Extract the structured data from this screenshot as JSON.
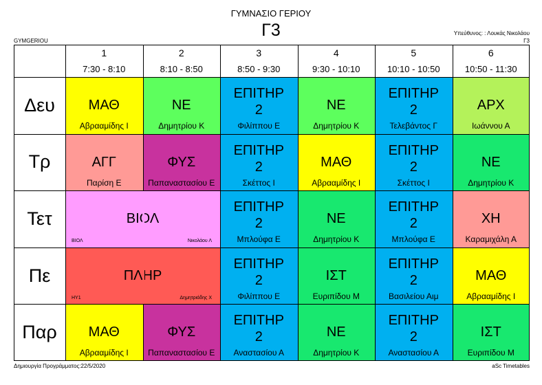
{
  "header": {
    "school_name": "ΓΥΜΝΑΣΙΟ ΓΕΡΙΟΥ",
    "class_name": "Γ3",
    "school_code": "GYMGERIOU",
    "responsible": "Υπεύθυνος: : Λουκάς Νικολάου",
    "responsible_class": "Γ3"
  },
  "periods": [
    {
      "number": "1",
      "time": "7:30 - 8:10"
    },
    {
      "number": "2",
      "time": "8:10 - 8:50"
    },
    {
      "number": "3",
      "time": "8:50 - 9:30"
    },
    {
      "number": "4",
      "time": "9:30 - 10:10"
    },
    {
      "number": "5",
      "time": "10:10 - 10:50"
    },
    {
      "number": "6",
      "time": "10:50 - 11:30"
    }
  ],
  "days": [
    "Δευ",
    "Τρ",
    "Τετ",
    "Πε",
    "Παρ"
  ],
  "lessons": [
    {
      "day": 0,
      "col": 0,
      "span": 1,
      "subject": "ΜΑΘ",
      "teacher": "Αβρααμίδης Ι",
      "color": "#ffff00"
    },
    {
      "day": 0,
      "col": 1,
      "span": 1,
      "subject": "ΝΕ",
      "teacher": "Δημητρίου Κ",
      "color": "#5dff5d"
    },
    {
      "day": 0,
      "col": 2,
      "span": 1,
      "subject": "ΕΠΙΤΗΡ 2",
      "teacher": "Φιλίππου Ε",
      "color": "#00b0f0"
    },
    {
      "day": 0,
      "col": 3,
      "span": 1,
      "subject": "ΝΕ",
      "teacher": "Δημητρίου Κ",
      "color": "#5dff5d"
    },
    {
      "day": 0,
      "col": 4,
      "span": 1,
      "subject": "ΕΠΙΤΗΡ 2",
      "teacher": "Τελεβάντος Γ",
      "color": "#00b0f0"
    },
    {
      "day": 0,
      "col": 5,
      "span": 1,
      "subject": "ΑΡΧ",
      "teacher": "Ιωάννου Α",
      "color": "#b4f25a"
    },
    {
      "day": 1,
      "col": 0,
      "span": 1,
      "subject": "ΑΓΓ",
      "teacher": "Παρίση Ε",
      "color": "#ff9a96"
    },
    {
      "day": 1,
      "col": 1,
      "span": 1,
      "subject": "ΦΥΣ",
      "teacher": "Παπαναστασίου Ε",
      "color": "#c8329e"
    },
    {
      "day": 1,
      "col": 2,
      "span": 1,
      "subject": "ΕΠΙΤΗΡ 2",
      "teacher": "Σκέττος Ι",
      "color": "#00b0f0"
    },
    {
      "day": 1,
      "col": 3,
      "span": 1,
      "subject": "ΜΑΘ",
      "teacher": "Αβρααμίδης Ι",
      "color": "#ffff00"
    },
    {
      "day": 1,
      "col": 4,
      "span": 1,
      "subject": "ΕΠΙΤΗΡ 2",
      "teacher": "Σκέττος Ι",
      "color": "#00b0f0"
    },
    {
      "day": 1,
      "col": 5,
      "span": 1,
      "subject": "ΝΕ",
      "teacher": "Δημητρίου Κ",
      "color": "#18e86f"
    },
    {
      "day": 2,
      "col": 0,
      "span": 2,
      "subject": "ΒΙΟΛ",
      "teacher": "",
      "small_left": "ΒΙΟΛ",
      "small_right": "Νικολάου Λ",
      "color": "#ff9cff"
    },
    {
      "day": 2,
      "col": 2,
      "span": 1,
      "subject": "ΕΠΙΤΗΡ 2",
      "teacher": "Μπλούφα Ε",
      "color": "#00b0f0"
    },
    {
      "day": 2,
      "col": 3,
      "span": 1,
      "subject": "ΝΕ",
      "teacher": "Δημητρίου Κ",
      "color": "#18e86f"
    },
    {
      "day": 2,
      "col": 4,
      "span": 1,
      "subject": "ΕΠΙΤΗΡ 2",
      "teacher": "Μπλούφα Ε",
      "color": "#00b0f0"
    },
    {
      "day": 2,
      "col": 5,
      "span": 1,
      "subject": "ΧΗ",
      "teacher": "Καραμιχάλη Α",
      "color": "#ff9a96"
    },
    {
      "day": 3,
      "col": 0,
      "span": 2,
      "subject": "ΠΛΗΡ",
      "teacher": "",
      "small_left": "ΗΥ1",
      "small_right": "Δημητριάδης Χ",
      "color": "#ff5a55"
    },
    {
      "day": 3,
      "col": 2,
      "span": 1,
      "subject": "ΕΠΙΤΗΡ 2",
      "teacher": "Φιλίππου Ε",
      "color": "#00b0f0"
    },
    {
      "day": 3,
      "col": 3,
      "span": 1,
      "subject": "ΙΣΤ",
      "teacher": "Ευριπίδου Μ",
      "color": "#18e86f"
    },
    {
      "day": 3,
      "col": 4,
      "span": 1,
      "subject": "ΕΠΙΤΗΡ 2",
      "teacher": "Βασιλείου Αιμ",
      "color": "#00b0f0"
    },
    {
      "day": 3,
      "col": 5,
      "span": 1,
      "subject": "ΜΑΘ",
      "teacher": "Αβρααμίδης Ι",
      "color": "#ffff00"
    },
    {
      "day": 4,
      "col": 0,
      "span": 1,
      "subject": "ΜΑΘ",
      "teacher": "Αβρααμίδης Ι",
      "color": "#ffff00"
    },
    {
      "day": 4,
      "col": 1,
      "span": 1,
      "subject": "ΦΥΣ",
      "teacher": "Παπαναστασίου Ε",
      "color": "#c8329e"
    },
    {
      "day": 4,
      "col": 2,
      "span": 1,
      "subject": "ΕΠΙΤΗΡ 2",
      "teacher": "Αναστασίου Α",
      "color": "#00b0f0"
    },
    {
      "day": 4,
      "col": 3,
      "span": 1,
      "subject": "ΝΕ",
      "teacher": "Δημητρίου Κ",
      "color": "#18e86f"
    },
    {
      "day": 4,
      "col": 4,
      "span": 1,
      "subject": "ΕΠΙΤΗΡ 2",
      "teacher": "Αναστασίου Α",
      "color": "#00b0f0"
    },
    {
      "day": 4,
      "col": 5,
      "span": 1,
      "subject": "ΙΣΤ",
      "teacher": "Ευριπίδου Μ",
      "color": "#18e86f"
    }
  ],
  "footer": {
    "created": "Δημιουργία Προγράμματος:22/5/2020",
    "software": "aSc Timetables"
  }
}
